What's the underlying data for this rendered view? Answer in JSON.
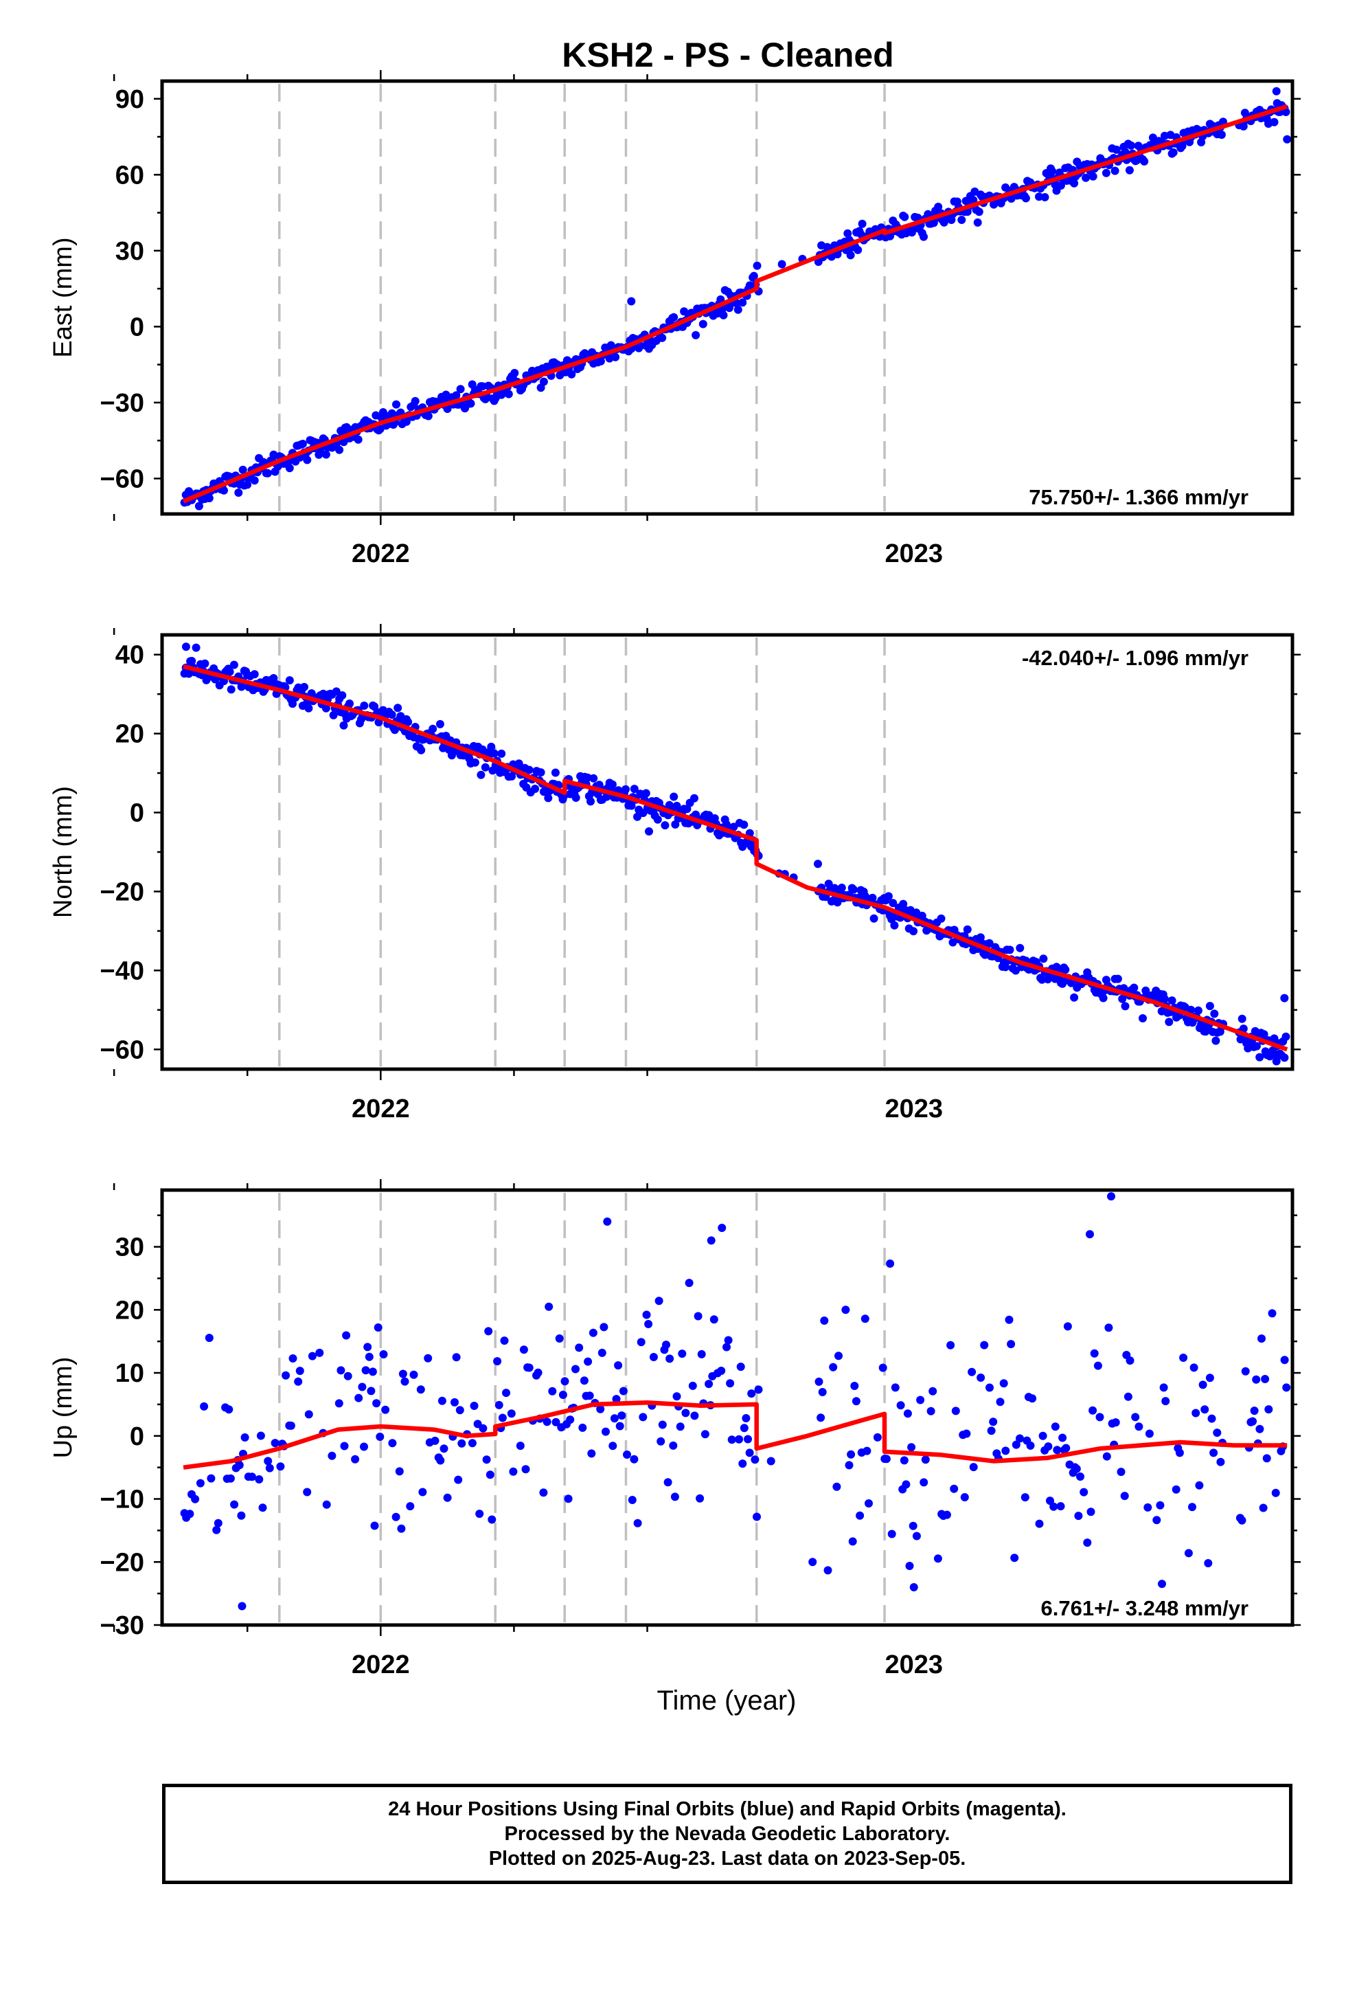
{
  "chart_data": {
    "title": "KSH2  - PS - Cleaned",
    "xlabel": "Time (year)",
    "x_tick_labels": [
      "2022",
      "2023"
    ],
    "xlim": [
      2021.59,
      2023.71
    ],
    "event_lines": [
      2021.81,
      2022.0,
      2022.215,
      2022.345,
      2022.46,
      2022.705,
      2022.945
    ],
    "colors": {
      "final_orbits": "#0000ff",
      "rapid_orbits": "#ff00ff",
      "model": "#ff0000",
      "event_line": "#c0c0c0"
    },
    "panels": [
      {
        "name": "east",
        "type": "scatter",
        "ylabel": "East (mm)",
        "ylim": [
          -74,
          97
        ],
        "yticks": [
          -60,
          -30,
          0,
          30,
          60,
          90
        ],
        "rate_label": "75.750+/- 1.366 mm/yr",
        "rate_position": "bottom-right",
        "model": [
          [
            2021.63,
            -69
          ],
          [
            2021.81,
            -53
          ],
          [
            2022.0,
            -38
          ],
          [
            2022.215,
            -25
          ],
          [
            2022.345,
            -16
          ],
          [
            2022.46,
            -8
          ],
          [
            2022.705,
            15
          ],
          [
            2022.705,
            18
          ],
          [
            2022.945,
            38
          ],
          [
            2022.945,
            37
          ],
          [
            2023.7,
            87
          ]
        ],
        "noise": 2.2,
        "outliers": [
          [
            2022.47,
            10
          ],
          [
            2022.7,
            20
          ],
          [
            2023.7,
            74
          ],
          [
            2023.68,
            93
          ]
        ]
      },
      {
        "name": "north",
        "type": "scatter",
        "ylabel": "North (mm)",
        "ylim": [
          -65,
          45
        ],
        "yticks": [
          -60,
          -40,
          -20,
          0,
          20,
          40
        ],
        "rate_label": "-42.040+/- 1.096 mm/yr",
        "rate_position": "top-right",
        "model": [
          [
            2021.63,
            37
          ],
          [
            2021.81,
            31
          ],
          [
            2022.0,
            24
          ],
          [
            2022.215,
            13
          ],
          [
            2022.345,
            5
          ],
          [
            2022.345,
            8
          ],
          [
            2022.46,
            4
          ],
          [
            2022.705,
            -7
          ],
          [
            2022.705,
            -13
          ],
          [
            2022.8,
            -19
          ],
          [
            2022.945,
            -24
          ],
          [
            2023.2,
            -38
          ],
          [
            2023.45,
            -48
          ],
          [
            2023.7,
            -60
          ]
        ],
        "noise": 1.7,
        "outliers": [
          [
            2021.635,
            42
          ],
          [
            2022.82,
            -13
          ],
          [
            2023.695,
            -47
          ],
          [
            2023.68,
            -63
          ]
        ]
      },
      {
        "name": "up",
        "type": "scatter",
        "ylabel": "Up (mm)",
        "ylim": [
          -30,
          39
        ],
        "yticks": [
          -30,
          -20,
          -10,
          0,
          10,
          20,
          30
        ],
        "rate_label": "6.761+/- 3.248 mm/yr",
        "rate_position": "bottom-right",
        "model": [
          [
            2021.63,
            -5
          ],
          [
            2021.72,
            -4
          ],
          [
            2021.81,
            -2
          ],
          [
            2021.92,
            1
          ],
          [
            2022.0,
            1.5
          ],
          [
            2022.1,
            1
          ],
          [
            2022.16,
            0
          ],
          [
            2022.215,
            0.3
          ],
          [
            2022.215,
            1.5
          ],
          [
            2022.3,
            3
          ],
          [
            2022.4,
            5
          ],
          [
            2022.5,
            5.3
          ],
          [
            2022.6,
            4.8
          ],
          [
            2022.705,
            5
          ],
          [
            2022.705,
            -2
          ],
          [
            2022.8,
            0
          ],
          [
            2022.945,
            3.5
          ],
          [
            2022.945,
            -2.5
          ],
          [
            2023.05,
            -3
          ],
          [
            2023.15,
            -4
          ],
          [
            2023.25,
            -3.5
          ],
          [
            2023.35,
            -2
          ],
          [
            2023.5,
            -1
          ],
          [
            2023.6,
            -1.5
          ],
          [
            2023.7,
            -1.5
          ]
        ],
        "noise": 8.5,
        "outliers": [
          [
            2023.37,
            38
          ],
          [
            2023.33,
            32
          ],
          [
            2022.425,
            34
          ],
          [
            2022.64,
            33
          ],
          [
            2022.62,
            31
          ],
          [
            2023.0,
            -24
          ],
          [
            2021.74,
            -27
          ],
          [
            2022.81,
            -20
          ]
        ]
      }
    ]
  },
  "footer": {
    "line1": "24 Hour Positions Using Final Orbits (blue) and Rapid Orbits (magenta).",
    "line2": "Processed by the Nevada Geodetic Laboratory.",
    "line3": "Plotted on 2025-Aug-23. Last data on 2023-Sep-05."
  }
}
